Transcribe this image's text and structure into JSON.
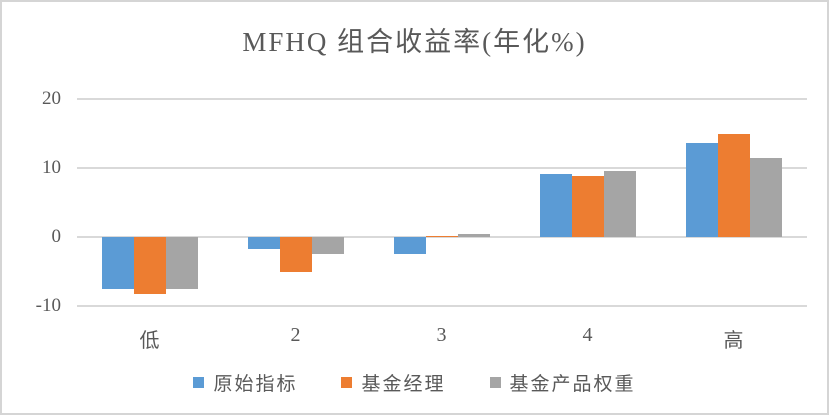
{
  "frame": {
    "background": "#FFFFFF",
    "border_color": "#D5D5D5",
    "text_color": "#595959",
    "gridline_color": "#D9D9D9"
  },
  "chart_data": {
    "type": "bar",
    "title": "MFHQ 组合收益率(年化%)",
    "xlabel": "",
    "ylabel": "",
    "categories": [
      "低",
      "2",
      "3",
      "4",
      "高"
    ],
    "series": [
      {
        "name": "原始指标",
        "color": "#5B9BD5",
        "values": [
          -7.6,
          -1.7,
          -2.5,
          9.1,
          13.6
        ]
      },
      {
        "name": "基金经理",
        "color": "#ED7D31",
        "values": [
          -8.3,
          -5.1,
          0.1,
          8.8,
          15.0
        ]
      },
      {
        "name": "基金产品权重",
        "color": "#A5A5A5",
        "values": [
          -7.6,
          -2.5,
          0.5,
          9.6,
          11.5
        ]
      }
    ],
    "ylim": [
      -10,
      20
    ],
    "yticks": [
      20,
      10,
      0,
      -10
    ],
    "grid": true,
    "legend_position": "bottom"
  }
}
